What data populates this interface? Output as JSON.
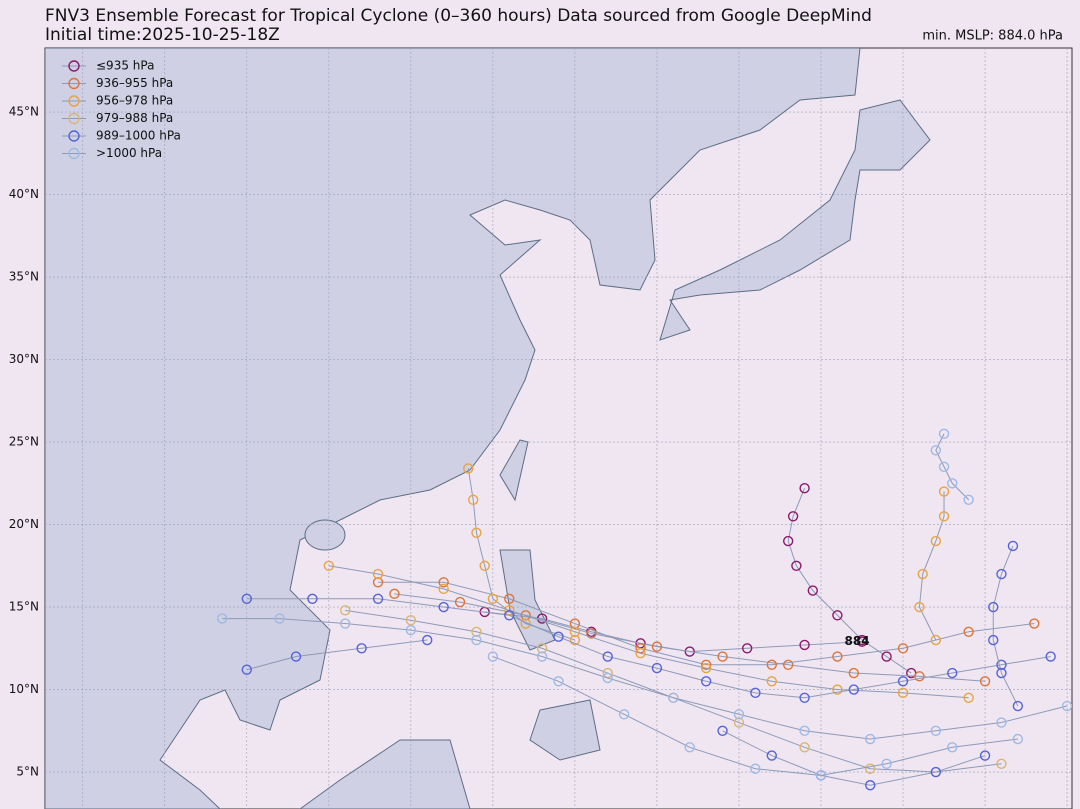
{
  "chart_data": {
    "type": "track-map",
    "title": "FNV3 Ensemble Forecast for Tropical Cyclone (0–360 hours) Data sourced from Google DeepMind",
    "subtitle": "Initial time:2025-10-25-18Z",
    "corner_label": "min. MSLP: 884.0 hPa",
    "annotation": {
      "label": "884",
      "x": 142.2,
      "y": 12.9
    },
    "xlim": [
      92.7,
      155.3
    ],
    "ylim": [
      2.76,
      48.88
    ],
    "xgrid": [
      95,
      100,
      105,
      110,
      115,
      120,
      125,
      130,
      135,
      140,
      145,
      150,
      155
    ],
    "yticks": [
      {
        "value": 5,
        "label": "5°N"
      },
      {
        "value": 10,
        "label": "10°N"
      },
      {
        "value": 15,
        "label": "15°N"
      },
      {
        "value": 20,
        "label": "20°N"
      },
      {
        "value": 25,
        "label": "25°N"
      },
      {
        "value": 30,
        "label": "30°N"
      },
      {
        "value": 35,
        "label": "35°N"
      },
      {
        "value": 40,
        "label": "40°N"
      },
      {
        "value": 45,
        "label": "45°N"
      }
    ],
    "grid": true,
    "legend": "upper left",
    "series": [
      {
        "name": "≤935 hPa",
        "color": "#8a1a6c",
        "tracks": [
          [
            [
              145.5,
              11
            ],
            [
              144,
              12
            ],
            [
              142.5,
              13
            ],
            [
              141,
              14.5
            ],
            [
              139.5,
              16
            ],
            [
              138.5,
              17.5
            ],
            [
              138,
              19
            ],
            [
              138.3,
              20.5
            ],
            [
              139,
              22.2
            ]
          ],
          [
            [
              142.5,
              12.9
            ],
            [
              139,
              12.7
            ],
            [
              135.5,
              12.5
            ],
            [
              132,
              12.3
            ],
            [
              129,
              12.8
            ],
            [
              126,
              13.5
            ],
            [
              123,
              14.3
            ],
            [
              119.5,
              14.7
            ]
          ]
        ]
      },
      {
        "name": "936–955 hPa",
        "color": "#dd7438",
        "tracks": [
          [
            [
              150,
              10.5
            ],
            [
              146,
              10.8
            ],
            [
              142,
              11
            ],
            [
              138,
              11.5
            ],
            [
              134,
              12
            ],
            [
              130,
              12.6
            ],
            [
              126,
              13.4
            ],
            [
              122,
              14.5
            ],
            [
              118,
              15.3
            ],
            [
              114,
              15.8
            ]
          ],
          [
            [
              153,
              14
            ],
            [
              149,
              13.5
            ],
            [
              145,
              12.5
            ],
            [
              141,
              12
            ],
            [
              137,
              11.5
            ],
            [
              133,
              11.5
            ],
            [
              129,
              12.5
            ],
            [
              125,
              14
            ],
            [
              121,
              15.5
            ],
            [
              117,
              16.5
            ],
            [
              113,
              16.5
            ]
          ]
        ]
      },
      {
        "name": "956–978 hPa",
        "color": "#e6a443",
        "tracks": [
          [
            [
              149,
              9.5
            ],
            [
              145,
              9.8
            ],
            [
              141,
              10
            ],
            [
              137,
              10.5
            ],
            [
              133,
              11.3
            ],
            [
              129,
              12.2
            ],
            [
              125,
              13.5
            ],
            [
              121,
              14.8
            ],
            [
              117,
              16.1
            ],
            [
              113,
              17
            ],
            [
              110,
              17.5
            ]
          ],
          [
            [
              125,
              13
            ],
            [
              122,
              14
            ],
            [
              120,
              15.5
            ],
            [
              119.5,
              17.5
            ],
            [
              119,
              19.5
            ],
            [
              118.8,
              21.5
            ],
            [
              118.5,
              23.4
            ]
          ],
          [
            [
              147,
              13
            ],
            [
              146,
              15
            ],
            [
              146.2,
              17
            ],
            [
              147,
              19
            ],
            [
              147.5,
              20.5
            ],
            [
              147.5,
              22
            ]
          ]
        ]
      },
      {
        "name": "979–988 hPa",
        "color": "#d9b574",
        "tracks": [
          [
            [
              151,
              5.5
            ],
            [
              147,
              5
            ],
            [
              143,
              5.2
            ],
            [
              139,
              6.5
            ],
            [
              135,
              8
            ],
            [
              131,
              9.5
            ],
            [
              127,
              11
            ],
            [
              123,
              12.5
            ],
            [
              119,
              13.5
            ],
            [
              115,
              14.2
            ],
            [
              111,
              14.8
            ]
          ]
        ]
      },
      {
        "name": "989–1000 hPa",
        "color": "#5563d6",
        "tracks": [
          [
            [
              154,
              12
            ],
            [
              151,
              11.5
            ],
            [
              148,
              11
            ],
            [
              145,
              10.5
            ],
            [
              142,
              10
            ],
            [
              139,
              9.5
            ],
            [
              136,
              9.8
            ],
            [
              133,
              10.5
            ],
            [
              130,
              11.3
            ],
            [
              127,
              12
            ],
            [
              124,
              13.2
            ],
            [
              121,
              14.5
            ],
            [
              117,
              15
            ],
            [
              113,
              15.5
            ],
            [
              109,
              15.5
            ],
            [
              105,
              15.5
            ]
          ],
          [
            [
              152,
              9
            ],
            [
              151,
              11
            ],
            [
              150.5,
              13
            ],
            [
              150.5,
              15
            ],
            [
              151,
              17
            ],
            [
              151.7,
              18.7
            ]
          ],
          [
            [
              150,
              6
            ],
            [
              147,
              5
            ],
            [
              143,
              4.2
            ],
            [
              140,
              4.8
            ],
            [
              137,
              6
            ],
            [
              134,
              7.5
            ]
          ],
          [
            [
              116,
              13
            ],
            [
              112,
              12.5
            ],
            [
              108,
              12
            ],
            [
              105,
              11.2
            ]
          ]
        ]
      },
      {
        "name": ">1000 hPa",
        "color": "#9db9e6",
        "tracks": [
          [
            [
              155,
              9
            ],
            [
              151,
              8
            ],
            [
              147,
              7.5
            ],
            [
              143,
              7
            ],
            [
              139,
              7.5
            ],
            [
              135,
              8.5
            ],
            [
              131,
              9.5
            ],
            [
              127,
              10.7
            ],
            [
              123,
              12
            ],
            [
              119,
              13
            ],
            [
              115,
              13.6
            ],
            [
              111,
              14
            ],
            [
              107,
              14.3
            ],
            [
              103.5,
              14.3
            ]
          ],
          [
            [
              149,
              21.5
            ],
            [
              148,
              22.5
            ],
            [
              147.5,
              23.5
            ],
            [
              147,
              24.5
            ],
            [
              147.5,
              25.5
            ]
          ],
          [
            [
              152,
              7
            ],
            [
              148,
              6.5
            ],
            [
              144,
              5.5
            ],
            [
              140,
              4.8
            ],
            [
              136,
              5.2
            ],
            [
              132,
              6.5
            ],
            [
              128,
              8.5
            ],
            [
              124,
              10.5
            ],
            [
              120,
              12
            ]
          ]
        ]
      }
    ]
  }
}
